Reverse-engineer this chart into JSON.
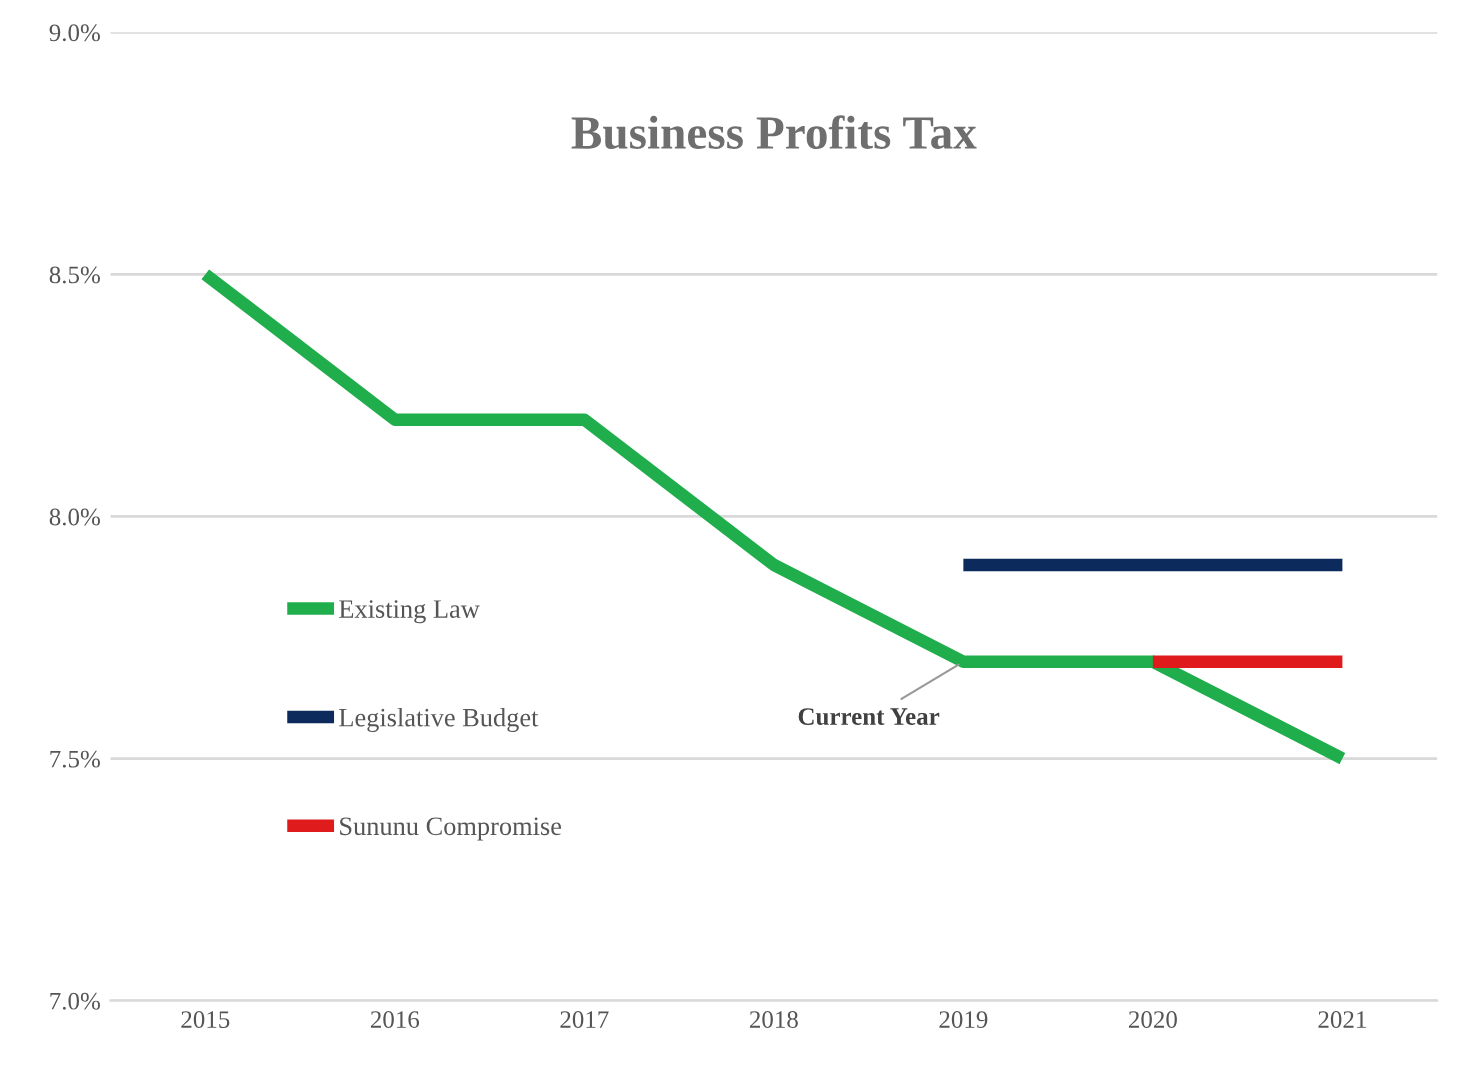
{
  "chart_data": {
    "type": "line",
    "title": "Business Profits Tax",
    "categories": [
      "2015",
      "2016",
      "2017",
      "2018",
      "2019",
      "2020",
      "2021"
    ],
    "series": [
      {
        "name": "Existing Law",
        "color": "#1fae4b",
        "values": [
          8.5,
          8.2,
          8.2,
          7.9,
          7.7,
          7.7,
          7.5
        ]
      },
      {
        "name": "Legislative Budget",
        "color": "#0d2a5c",
        "values": [
          null,
          null,
          null,
          null,
          7.9,
          7.9,
          7.9
        ]
      },
      {
        "name": "Sununu Compromise",
        "color": "#e01b1b",
        "values": [
          null,
          null,
          null,
          null,
          null,
          7.7,
          7.7
        ]
      }
    ],
    "ylim": [
      7.0,
      9.0
    ],
    "yticks": [
      {
        "value": 7.0,
        "label": "7.0%"
      },
      {
        "value": 7.5,
        "label": "7.5%"
      },
      {
        "value": 8.0,
        "label": "8.0%"
      },
      {
        "value": 8.5,
        "label": "8.5%"
      },
      {
        "value": 9.0,
        "label": "9.0%"
      }
    ],
    "grid": "y",
    "legend": "left",
    "line_style": "solid",
    "marker": "none",
    "annotations": [
      {
        "text": "Current Year",
        "x": "2019",
        "y": 7.7
      }
    ]
  }
}
